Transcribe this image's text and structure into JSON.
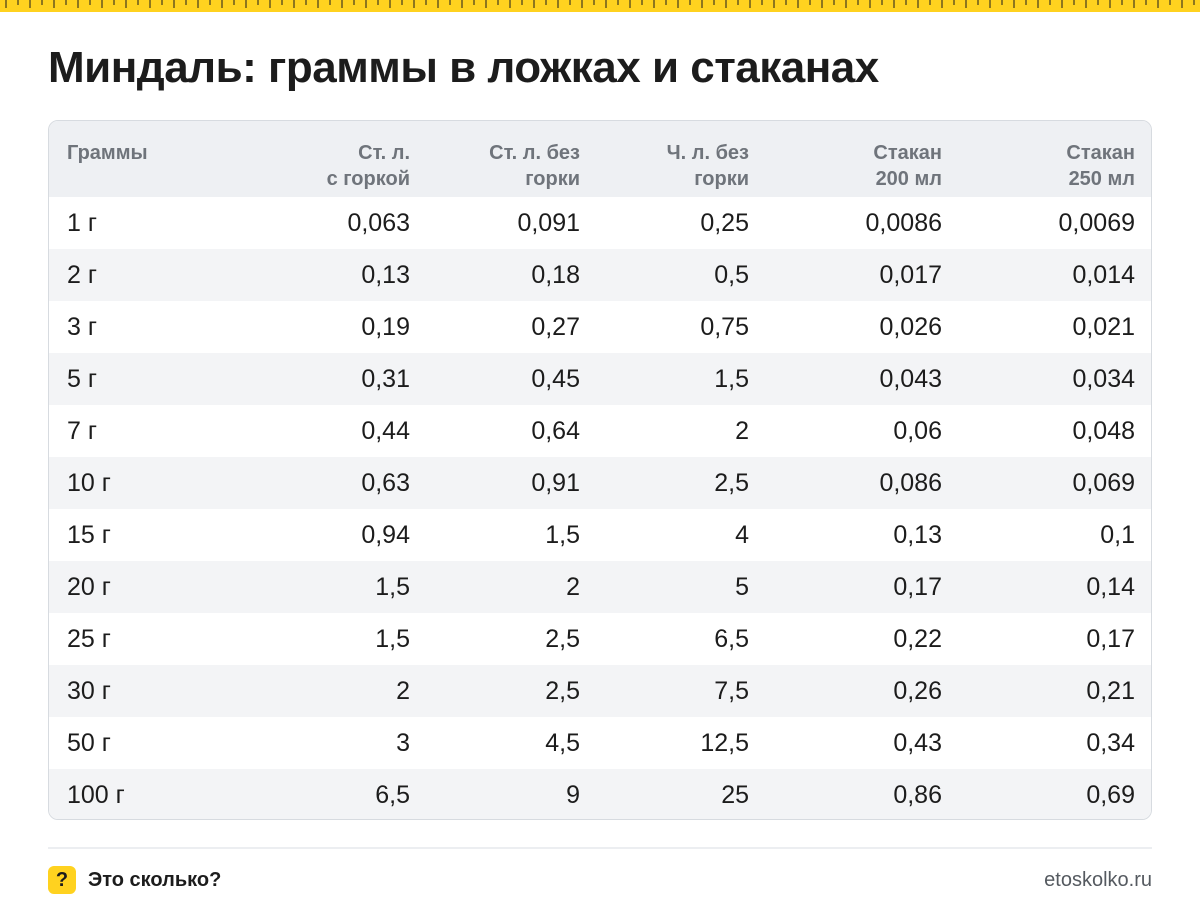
{
  "title": "Миндаль: граммы в ложках и стаканах",
  "table": {
    "headers": [
      {
        "line1": "Граммы",
        "line2": ""
      },
      {
        "line1": "Ст. л.",
        "line2": "с горкой"
      },
      {
        "line1": "Ст. л. без",
        "line2": "горки"
      },
      {
        "line1": "Ч. л. без",
        "line2": "горки"
      },
      {
        "line1": "Стакан",
        "line2": "200 мл"
      },
      {
        "line1": "Стакан",
        "line2": "250 мл"
      }
    ],
    "rows": [
      [
        "1 г",
        "0,063",
        "0,091",
        "0,25",
        "0,0086",
        "0,0069"
      ],
      [
        "2 г",
        "0,13",
        "0,18",
        "0,5",
        "0,017",
        "0,014"
      ],
      [
        "3 г",
        "0,19",
        "0,27",
        "0,75",
        "0,026",
        "0,021"
      ],
      [
        "5 г",
        "0,31",
        "0,45",
        "1,5",
        "0,043",
        "0,034"
      ],
      [
        "7 г",
        "0,44",
        "0,64",
        "2",
        "0,06",
        "0,048"
      ],
      [
        "10 г",
        "0,63",
        "0,91",
        "2,5",
        "0,086",
        "0,069"
      ],
      [
        "15 г",
        "0,94",
        "1,5",
        "4",
        "0,13",
        "0,1"
      ],
      [
        "20 г",
        "1,5",
        "2",
        "5",
        "0,17",
        "0,14"
      ],
      [
        "25 г",
        "1,5",
        "2,5",
        "6,5",
        "0,22",
        "0,17"
      ],
      [
        "30 г",
        "2",
        "2,5",
        "7,5",
        "0,26",
        "0,21"
      ],
      [
        "50 г",
        "3",
        "4,5",
        "12,5",
        "0,43",
        "0,34"
      ],
      [
        "100 г",
        "6,5",
        "9",
        "25",
        "0,86",
        "0,69"
      ]
    ]
  },
  "footer": {
    "badge": "?",
    "brand": "Это сколько?",
    "site": "etoskolko.ru"
  },
  "colors": {
    "accent": "#ffd21f",
    "header_bg": "#eef0f3",
    "stripe_bg": "#f3f4f6",
    "header_text": "#6f747b"
  }
}
